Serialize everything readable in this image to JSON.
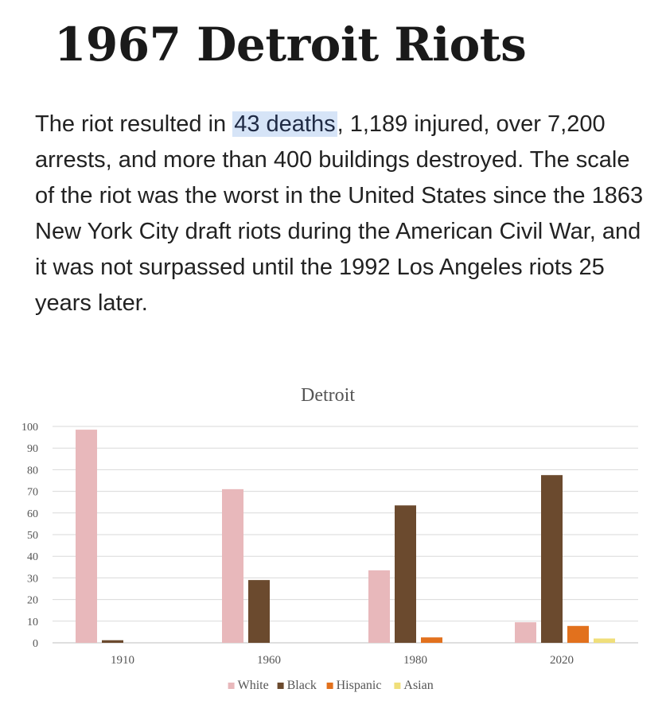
{
  "page": {
    "title": "1967 Detroit Riots",
    "paragraph": {
      "before": "The riot resulted in ",
      "highlight": "43 deaths",
      "after": ", 1,189 injured, over 7,200 arrests, and more than 400 buildings destroyed. The scale of the riot was the worst in the United States since the 1863 New York City draft riots during the American Civil War, and it was not surpassed until the 1992 Los Angeles riots 25 years later."
    }
  },
  "chart_data": {
    "type": "bar",
    "title": "Detroit",
    "xlabel": "",
    "ylabel": "",
    "ylim": [
      0,
      100
    ],
    "yticks": [
      0,
      10,
      20,
      30,
      40,
      50,
      60,
      70,
      80,
      90,
      100
    ],
    "grid": true,
    "legend_position": "bottom",
    "categories": [
      "1910",
      "1960",
      "1980",
      "2020"
    ],
    "series": [
      {
        "name": "White",
        "color": "#e8b8bb",
        "values": [
          98.5,
          71,
          33.5,
          9.5
        ]
      },
      {
        "name": "Black",
        "color": "#6b4a2e",
        "values": [
          1.2,
          29,
          63.5,
          77.5
        ]
      },
      {
        "name": "Hispanic",
        "color": "#e2711d",
        "values": [
          0,
          0,
          2.5,
          7.8
        ]
      },
      {
        "name": "Asian",
        "color": "#f0df7a",
        "values": [
          0,
          0,
          0,
          2
        ]
      }
    ]
  }
}
